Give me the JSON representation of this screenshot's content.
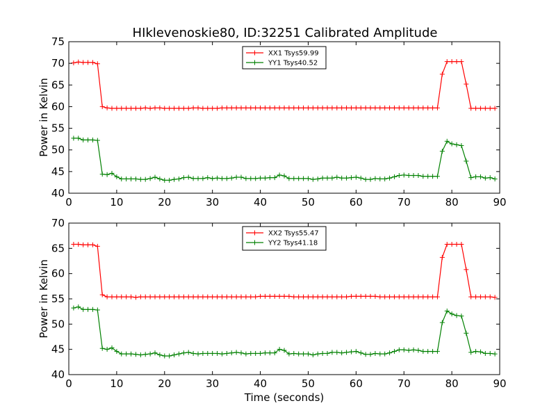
{
  "title": "HIklevenoskie80, ID:32251 Calibrated Amplitude",
  "chart_data": [
    {
      "type": "line",
      "title": "HIklevenoskie80, ID:32251 Calibrated Amplitude",
      "xlabel": "",
      "ylabel": "Power in Kelvin",
      "xlim": [
        0,
        90
      ],
      "ylim": [
        40,
        75
      ],
      "xticks": [
        "0",
        "10",
        "20",
        "30",
        "40",
        "50",
        "60",
        "70",
        "80",
        "90"
      ],
      "yticks": [
        "40",
        "45",
        "50",
        "55",
        "60",
        "65",
        "70",
        "75"
      ],
      "grid": false,
      "legend_position": "top-center",
      "x": [
        1,
        2,
        3,
        4,
        5,
        6,
        7,
        8,
        9,
        10,
        11,
        12,
        13,
        14,
        15,
        16,
        17,
        18,
        19,
        20,
        21,
        22,
        23,
        24,
        25,
        26,
        27,
        28,
        29,
        30,
        31,
        32,
        33,
        34,
        35,
        36,
        37,
        38,
        39,
        40,
        41,
        42,
        43,
        44,
        45,
        46,
        47,
        48,
        49,
        50,
        51,
        52,
        53,
        54,
        55,
        56,
        57,
        58,
        59,
        60,
        61,
        62,
        63,
        64,
        65,
        66,
        67,
        68,
        69,
        70,
        71,
        72,
        73,
        74,
        75,
        76,
        77,
        78,
        79,
        80,
        81,
        82,
        83,
        84,
        85,
        86,
        87,
        88,
        89
      ],
      "series": [
        {
          "name": "XX1 Tsys59.99",
          "color": "#ff0000",
          "values": [
            70.1,
            70.3,
            70.2,
            70.2,
            70.2,
            69.9,
            60.0,
            59.7,
            59.6,
            59.6,
            59.6,
            59.6,
            59.6,
            59.6,
            59.6,
            59.7,
            59.6,
            59.7,
            59.7,
            59.6,
            59.6,
            59.6,
            59.6,
            59.6,
            59.6,
            59.7,
            59.7,
            59.6,
            59.6,
            59.6,
            59.6,
            59.7,
            59.7,
            59.7,
            59.7,
            59.7,
            59.7,
            59.7,
            59.7,
            59.7,
            59.7,
            59.7,
            59.7,
            59.7,
            59.7,
            59.7,
            59.7,
            59.7,
            59.7,
            59.7,
            59.7,
            59.7,
            59.7,
            59.7,
            59.7,
            59.7,
            59.7,
            59.7,
            59.7,
            59.7,
            59.7,
            59.7,
            59.7,
            59.7,
            59.7,
            59.7,
            59.7,
            59.7,
            59.7,
            59.7,
            59.7,
            59.7,
            59.7,
            59.7,
            59.7,
            59.7,
            59.7,
            67.5,
            70.4,
            70.4,
            70.4,
            70.4,
            65.2,
            59.6,
            59.6,
            59.6,
            59.6,
            59.6,
            59.6
          ]
        },
        {
          "name": "YY1 Tsys40.52",
          "color": "#008000",
          "values": [
            52.7,
            52.7,
            52.3,
            52.3,
            52.3,
            52.2,
            44.4,
            44.3,
            44.6,
            43.8,
            43.3,
            43.3,
            43.3,
            43.3,
            43.2,
            43.2,
            43.4,
            43.7,
            43.3,
            43.0,
            43.0,
            43.2,
            43.3,
            43.6,
            43.7,
            43.4,
            43.4,
            43.4,
            43.6,
            43.4,
            43.5,
            43.4,
            43.4,
            43.5,
            43.7,
            43.7,
            43.4,
            43.4,
            43.4,
            43.5,
            43.5,
            43.6,
            43.6,
            44.2,
            44.0,
            43.4,
            43.4,
            43.4,
            43.4,
            43.4,
            43.2,
            43.3,
            43.5,
            43.5,
            43.5,
            43.7,
            43.5,
            43.5,
            43.6,
            43.7,
            43.5,
            43.2,
            43.2,
            43.4,
            43.3,
            43.3,
            43.5,
            43.8,
            44.1,
            44.2,
            44.1,
            44.1,
            44.1,
            43.9,
            43.9,
            43.9,
            43.9,
            49.7,
            52.0,
            51.4,
            51.2,
            51.0,
            47.4,
            43.6,
            43.8,
            43.8,
            43.5,
            43.6,
            43.3
          ]
        }
      ]
    },
    {
      "type": "line",
      "title": "",
      "xlabel": "Time (seconds)",
      "ylabel": "Power in Kelvin",
      "xlim": [
        0,
        90
      ],
      "ylim": [
        40,
        70
      ],
      "xticks": [
        "0",
        "10",
        "20",
        "30",
        "40",
        "50",
        "60",
        "70",
        "80",
        "90"
      ],
      "yticks": [
        "40",
        "45",
        "50",
        "55",
        "60",
        "65",
        "70"
      ],
      "grid": false,
      "legend_position": "top-center",
      "x": [
        1,
        2,
        3,
        4,
        5,
        6,
        7,
        8,
        9,
        10,
        11,
        12,
        13,
        14,
        15,
        16,
        17,
        18,
        19,
        20,
        21,
        22,
        23,
        24,
        25,
        26,
        27,
        28,
        29,
        30,
        31,
        32,
        33,
        34,
        35,
        36,
        37,
        38,
        39,
        40,
        41,
        42,
        43,
        44,
        45,
        46,
        47,
        48,
        49,
        50,
        51,
        52,
        53,
        54,
        55,
        56,
        57,
        58,
        59,
        60,
        61,
        62,
        63,
        64,
        65,
        66,
        67,
        68,
        69,
        70,
        71,
        72,
        73,
        74,
        75,
        76,
        77,
        78,
        79,
        80,
        81,
        82,
        83,
        84,
        85,
        86,
        87,
        88,
        89
      ],
      "series": [
        {
          "name": "XX2 Tsys55.47",
          "color": "#ff0000",
          "values": [
            65.8,
            65.8,
            65.7,
            65.7,
            65.7,
            65.4,
            55.8,
            55.4,
            55.4,
            55.4,
            55.4,
            55.4,
            55.4,
            55.3,
            55.4,
            55.4,
            55.4,
            55.4,
            55.4,
            55.4,
            55.4,
            55.4,
            55.4,
            55.4,
            55.4,
            55.4,
            55.4,
            55.4,
            55.4,
            55.4,
            55.4,
            55.4,
            55.4,
            55.4,
            55.4,
            55.4,
            55.4,
            55.4,
            55.4,
            55.5,
            55.5,
            55.5,
            55.5,
            55.5,
            55.5,
            55.5,
            55.4,
            55.4,
            55.4,
            55.4,
            55.4,
            55.4,
            55.4,
            55.4,
            55.4,
            55.4,
            55.4,
            55.4,
            55.5,
            55.5,
            55.5,
            55.5,
            55.5,
            55.5,
            55.4,
            55.4,
            55.4,
            55.4,
            55.4,
            55.4,
            55.4,
            55.4,
            55.4,
            55.4,
            55.4,
            55.4,
            55.4,
            63.2,
            65.8,
            65.8,
            65.8,
            65.8,
            60.8,
            55.4,
            55.4,
            55.4,
            55.4,
            55.4,
            55.3
          ]
        },
        {
          "name": "YY2 Tsys41.18",
          "color": "#008000",
          "values": [
            53.2,
            53.4,
            52.9,
            52.9,
            52.9,
            52.8,
            45.2,
            45.0,
            45.3,
            44.6,
            44.1,
            44.1,
            44.1,
            44.0,
            43.9,
            44.0,
            44.1,
            44.3,
            43.9,
            43.7,
            43.7,
            43.9,
            44.1,
            44.3,
            44.4,
            44.2,
            44.1,
            44.2,
            44.2,
            44.2,
            44.2,
            44.1,
            44.2,
            44.3,
            44.4,
            44.3,
            44.1,
            44.2,
            44.2,
            44.2,
            44.3,
            44.3,
            44.3,
            45.0,
            44.8,
            44.1,
            44.2,
            44.1,
            44.1,
            44.1,
            43.9,
            44.1,
            44.2,
            44.2,
            44.4,
            44.4,
            44.3,
            44.4,
            44.5,
            44.6,
            44.3,
            44.0,
            44.0,
            44.2,
            44.1,
            44.1,
            44.3,
            44.6,
            44.9,
            44.9,
            44.8,
            44.9,
            44.8,
            44.6,
            44.6,
            44.6,
            44.6,
            50.3,
            52.6,
            52.0,
            51.7,
            51.6,
            48.2,
            44.4,
            44.6,
            44.5,
            44.2,
            44.2,
            44.1
          ]
        }
      ]
    }
  ]
}
